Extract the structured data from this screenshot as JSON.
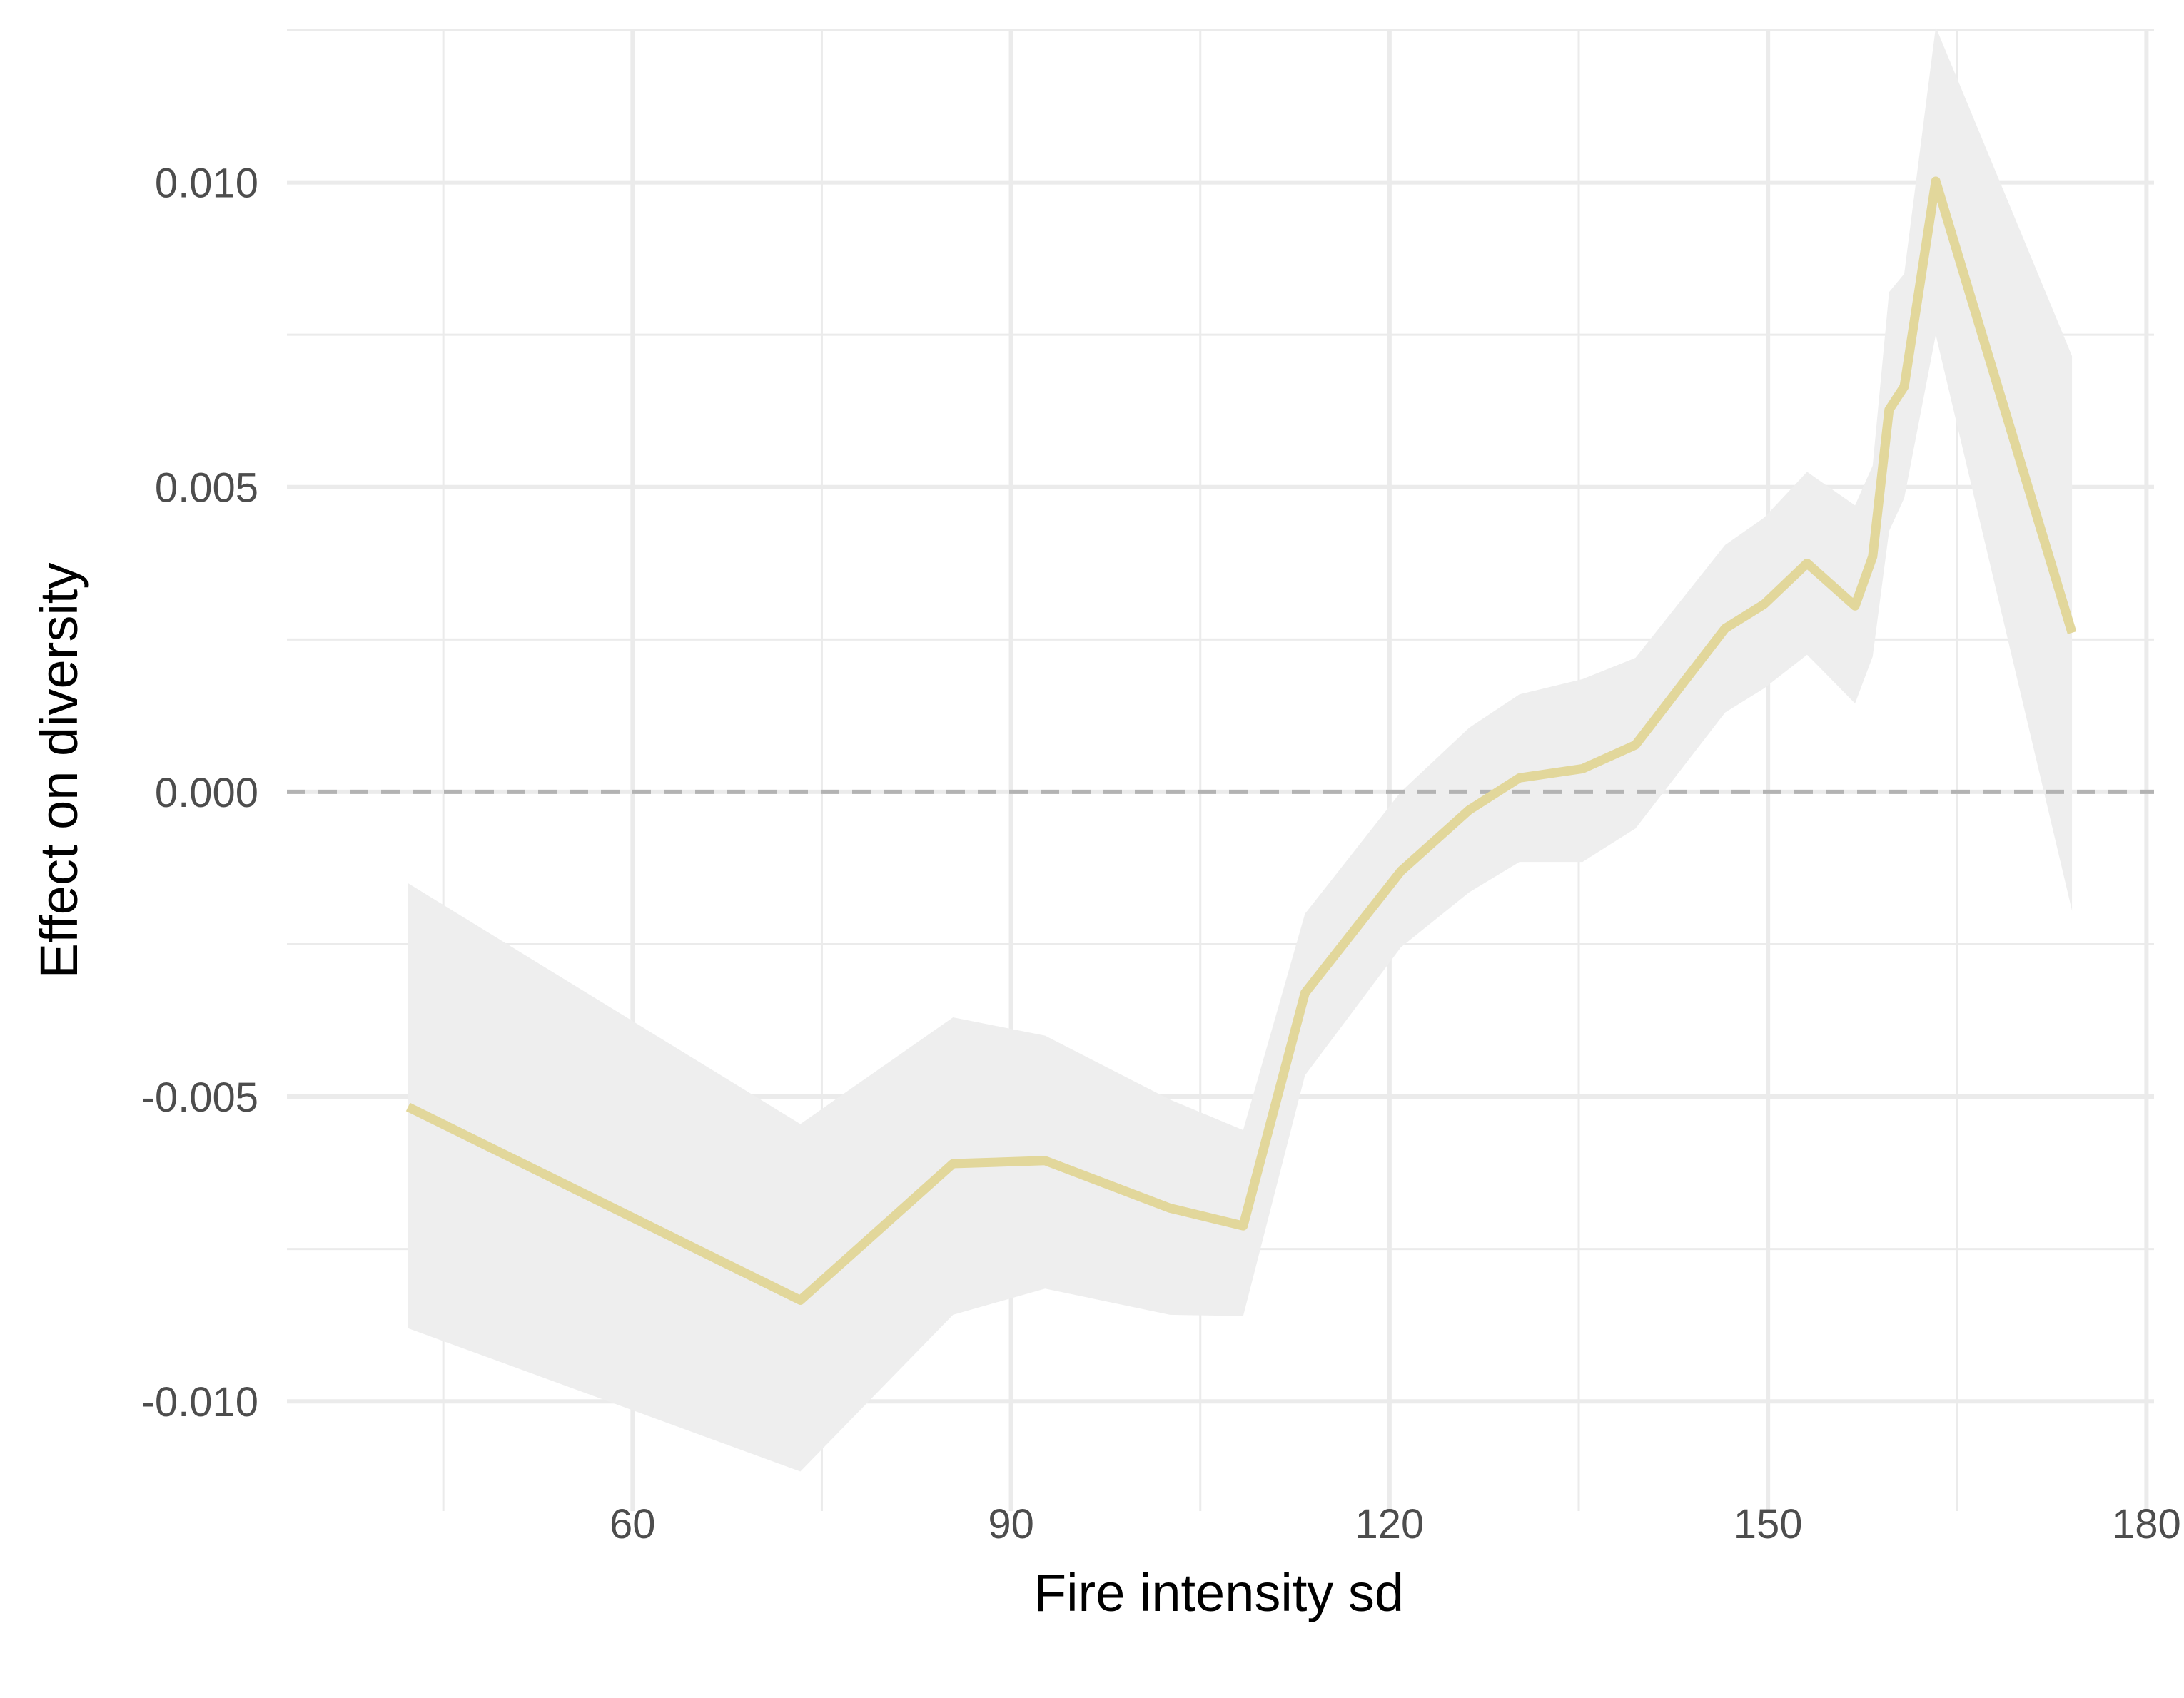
{
  "chart_data": {
    "type": "line",
    "title": "",
    "xlabel": "Fire intensity sd",
    "ylabel": "Effect on diversity",
    "xlim": [
      32.6,
      180.6
    ],
    "ylim": [
      -0.0118,
      0.0125
    ],
    "x_ticks": [
      60,
      90,
      120,
      150,
      180
    ],
    "x_tick_labels": [
      "60",
      "90",
      "120",
      "150",
      "180"
    ],
    "y_ticks": [
      -0.01,
      -0.005,
      0.0,
      0.005,
      0.01
    ],
    "y_tick_labels": [
      "-0.010",
      "-0.005",
      "0.000",
      "0.005",
      "0.010"
    ],
    "grid": true,
    "reference_line": {
      "y": 0,
      "style": "dashed",
      "color": "#b3b3b3"
    },
    "line_color": "#e2d79b",
    "ribbon_color": "#eeeeee",
    "series": [
      {
        "x": [
          42.2,
          73.3,
          85.4,
          92.7,
          102.6,
          108.4,
          113.3,
          120.9,
          126.3,
          130.3,
          135.3,
          139.5,
          146.6,
          149.7,
          153.1,
          156.9,
          158.3,
          159.6,
          160.8,
          163.3,
          174.1
        ],
        "y": [
          -0.00517,
          -0.00834,
          -0.0061,
          -0.00605,
          -0.00683,
          -0.00712,
          -0.0033,
          -0.0013,
          -0.0003,
          0.00023,
          0.00038,
          0.00077,
          0.00268,
          0.00308,
          0.00375,
          0.00305,
          0.00386,
          0.00627,
          0.00665,
          0.01002,
          0.00261
        ],
        "lower": [
          -0.0088,
          -0.01115,
          -0.00858,
          -0.00815,
          -0.00858,
          -0.0086,
          -0.00465,
          -0.00255,
          -0.00165,
          -0.00115,
          -0.00115,
          -0.0006,
          0.0013,
          0.0017,
          0.00225,
          0.00145,
          0.00222,
          0.00428,
          0.00482,
          0.0075,
          -0.00195
        ],
        "upper": [
          -0.0015,
          -0.00545,
          -0.0037,
          -0.004,
          -0.00505,
          -0.00555,
          -0.002,
          0.0,
          0.00105,
          0.0016,
          0.00185,
          0.0022,
          0.00405,
          0.0045,
          0.00525,
          0.0047,
          0.00535,
          0.0082,
          0.0085,
          0.01255,
          0.00715
        ]
      }
    ]
  }
}
